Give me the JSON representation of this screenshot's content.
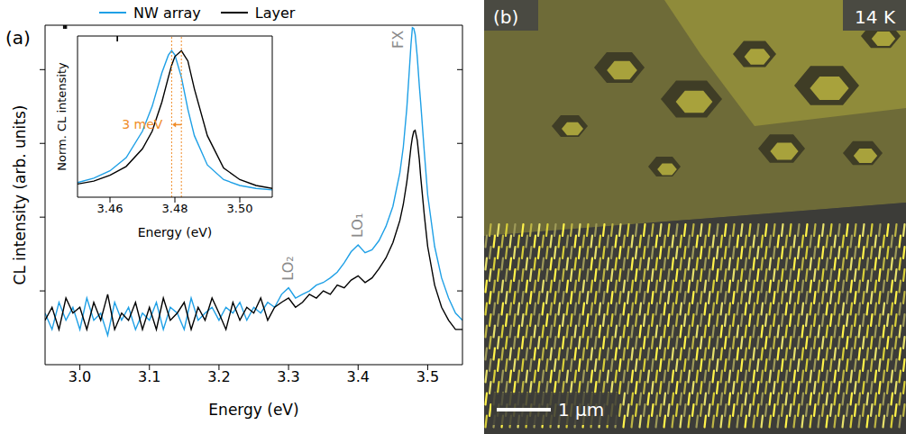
{
  "panel_labels": [
    "(a)",
    "(b)"
  ],
  "image_panel": {
    "temperature": "14 K",
    "scale_bar": "1 µm"
  },
  "chart_data": [
    {
      "type": "line",
      "x_label": "Energy (eV)",
      "y_label": "CL intensity (arb. units)",
      "log": "y",
      "grid": false,
      "legend": "top",
      "tick_labels": "x",
      "xlim": [
        2.95,
        3.55
      ],
      "xticks": [
        {
          "value": 3,
          "label": "3.0"
        },
        3.1,
        3.2,
        3.3,
        3.4,
        3.5
      ],
      "ylim": [
        1,
        40000
      ],
      "yticks": [
        10,
        100,
        1000,
        10000
      ],
      "x": [
        2.95,
        2.96,
        2.97,
        2.98,
        2.99,
        3.0,
        3.01,
        3.02,
        3.03,
        3.04,
        3.05,
        3.06,
        3.07,
        3.08,
        3.09,
        3.1,
        3.11,
        3.12,
        3.13,
        3.14,
        3.15,
        3.16,
        3.17,
        3.18,
        3.19,
        3.2,
        3.21,
        3.22,
        3.23,
        3.24,
        3.25,
        3.26,
        3.27,
        3.28,
        3.29,
        3.3,
        3.31,
        3.32,
        3.33,
        3.34,
        3.35,
        3.36,
        3.37,
        3.38,
        3.39,
        3.4,
        3.41,
        3.42,
        3.43,
        3.44,
        3.45,
        3.46,
        3.465,
        3.47,
        3.473,
        3.476,
        3.478,
        3.48,
        3.482,
        3.485,
        3.488,
        3.49,
        3.495,
        3.5,
        3.51,
        3.52,
        3.53,
        3.54,
        3.55
      ],
      "series": [
        {
          "name": "NW array",
          "color": "#1fa0e6",
          "values": [
            5,
            3,
            7,
            4,
            6,
            3,
            8,
            4,
            5,
            2.5,
            7,
            4,
            6,
            3,
            5,
            4,
            7,
            3,
            6,
            5,
            3,
            8,
            4,
            5,
            6,
            4,
            6,
            5,
            7,
            4,
            6,
            5,
            7,
            6,
            9,
            11,
            8,
            9,
            10,
            12,
            13,
            15,
            18,
            24,
            34,
            42,
            33,
            36,
            48,
            75,
            140,
            400,
            900,
            3000,
            8000,
            22000,
            37000,
            36000,
            30000,
            15000,
            6000,
            3500,
            800,
            200,
            40,
            15,
            8,
            5,
            4
          ]
        },
        {
          "name": "Layer",
          "color": "#000000",
          "values": [
            4,
            6,
            3,
            8,
            5,
            6,
            3,
            7,
            4,
            9,
            3,
            5,
            4,
            7,
            3,
            6,
            3,
            8,
            4,
            5,
            7,
            3,
            6,
            4,
            8,
            5,
            3,
            7,
            4,
            6,
            5,
            8,
            4,
            6,
            7,
            8,
            6,
            7,
            9,
            8,
            10,
            9,
            12,
            11,
            14,
            16,
            13,
            15,
            20,
            28,
            45,
            90,
            150,
            300,
            500,
            900,
            1200,
            1450,
            1500,
            1100,
            600,
            350,
            110,
            40,
            12,
            6,
            4,
            3,
            3
          ]
        }
      ],
      "annotations": [
        {
          "text": "FX",
          "x": 3.48
        },
        {
          "text": "LO₁",
          "x": 3.4
        },
        {
          "text": "LO₂",
          "x": 3.3
        }
      ]
    },
    {
      "type": "line",
      "x_label": "Energy (eV)",
      "y_label": "Norm. CL intensity",
      "grid": false,
      "tick_labels": "x",
      "xlim": [
        3.45,
        3.51
      ],
      "xticks": [
        3.46,
        3.48,
        {
          "value": 3.5,
          "label": "3.50"
        }
      ],
      "ylim": [
        0,
        1.1
      ],
      "x": [
        3.45,
        3.455,
        3.46,
        3.465,
        3.47,
        3.473,
        3.476,
        3.478,
        3.479,
        3.48,
        3.482,
        3.484,
        3.486,
        3.49,
        3.495,
        3.5,
        3.505,
        3.51
      ],
      "series": [
        {
          "name": "NW array",
          "color": "#1fa0e6",
          "values": [
            0.1,
            0.13,
            0.18,
            0.27,
            0.45,
            0.62,
            0.85,
            0.97,
            1.0,
            0.97,
            0.82,
            0.6,
            0.42,
            0.22,
            0.12,
            0.08,
            0.06,
            0.05
          ]
        },
        {
          "name": "Layer",
          "color": "#000000",
          "values": [
            0.09,
            0.11,
            0.15,
            0.21,
            0.33,
            0.45,
            0.65,
            0.82,
            0.9,
            0.96,
            1.0,
            0.93,
            0.74,
            0.42,
            0.2,
            0.12,
            0.08,
            0.06
          ]
        }
      ],
      "annotations": [
        {
          "text": "3 meV",
          "x": 3.479,
          "x2": 3.482
        }
      ]
    }
  ]
}
